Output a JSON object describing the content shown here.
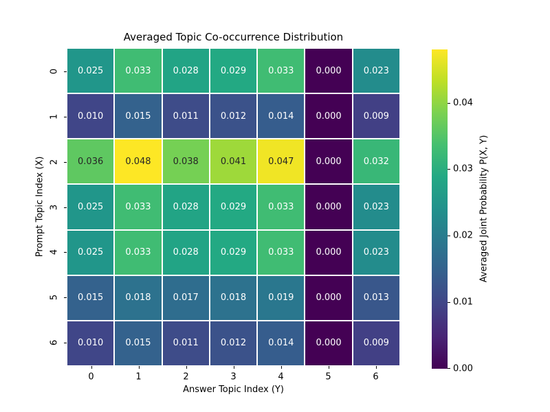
{
  "chart_data": {
    "type": "heatmap",
    "title": "Averaged Topic Co-occurrence Distribution",
    "xlabel": "Answer Topic Index (Y)",
    "ylabel": "Prompt Topic Index (X)",
    "x_ticklabels": [
      "0",
      "1",
      "2",
      "3",
      "4",
      "5",
      "6"
    ],
    "y_ticklabels": [
      "0",
      "1",
      "2",
      "3",
      "4",
      "5",
      "6"
    ],
    "values": [
      [
        0.025,
        0.033,
        0.028,
        0.029,
        0.033,
        0.0,
        0.023
      ],
      [
        0.01,
        0.015,
        0.011,
        0.012,
        0.014,
        0.0,
        0.009
      ],
      [
        0.036,
        0.048,
        0.038,
        0.041,
        0.047,
        0.0,
        0.032
      ],
      [
        0.025,
        0.033,
        0.028,
        0.029,
        0.033,
        0.0,
        0.023
      ],
      [
        0.025,
        0.033,
        0.028,
        0.029,
        0.033,
        0.0,
        0.023
      ],
      [
        0.015,
        0.018,
        0.017,
        0.018,
        0.019,
        0.0,
        0.013
      ],
      [
        0.01,
        0.015,
        0.011,
        0.012,
        0.014,
        0.0,
        0.009
      ]
    ],
    "annot_decimals": 3,
    "vmin": 0.0,
    "vmax": 0.048,
    "colormap": "viridis",
    "grid_on": false,
    "cell_gridline_color": "#ffffff",
    "legend_position": "right-colorbar",
    "colorbar": {
      "label": "Averaged Joint Probability P(X, Y)",
      "tick_values": [
        0.0,
        0.01,
        0.02,
        0.03,
        0.04
      ],
      "tick_labels": [
        "0.00",
        "0.01",
        "0.02",
        "0.03",
        "0.04"
      ]
    },
    "colors": {
      "viridis_stops": [
        "#440154",
        "#482475",
        "#414487",
        "#355f8d",
        "#2a788e",
        "#21918c",
        "#22a884",
        "#44bf70",
        "#7ad151",
        "#bddf26",
        "#fde725"
      ],
      "annot_dark": "#262626",
      "annot_light": "#ffffff",
      "background": "#ffffff",
      "tick_color": "#000000"
    }
  }
}
